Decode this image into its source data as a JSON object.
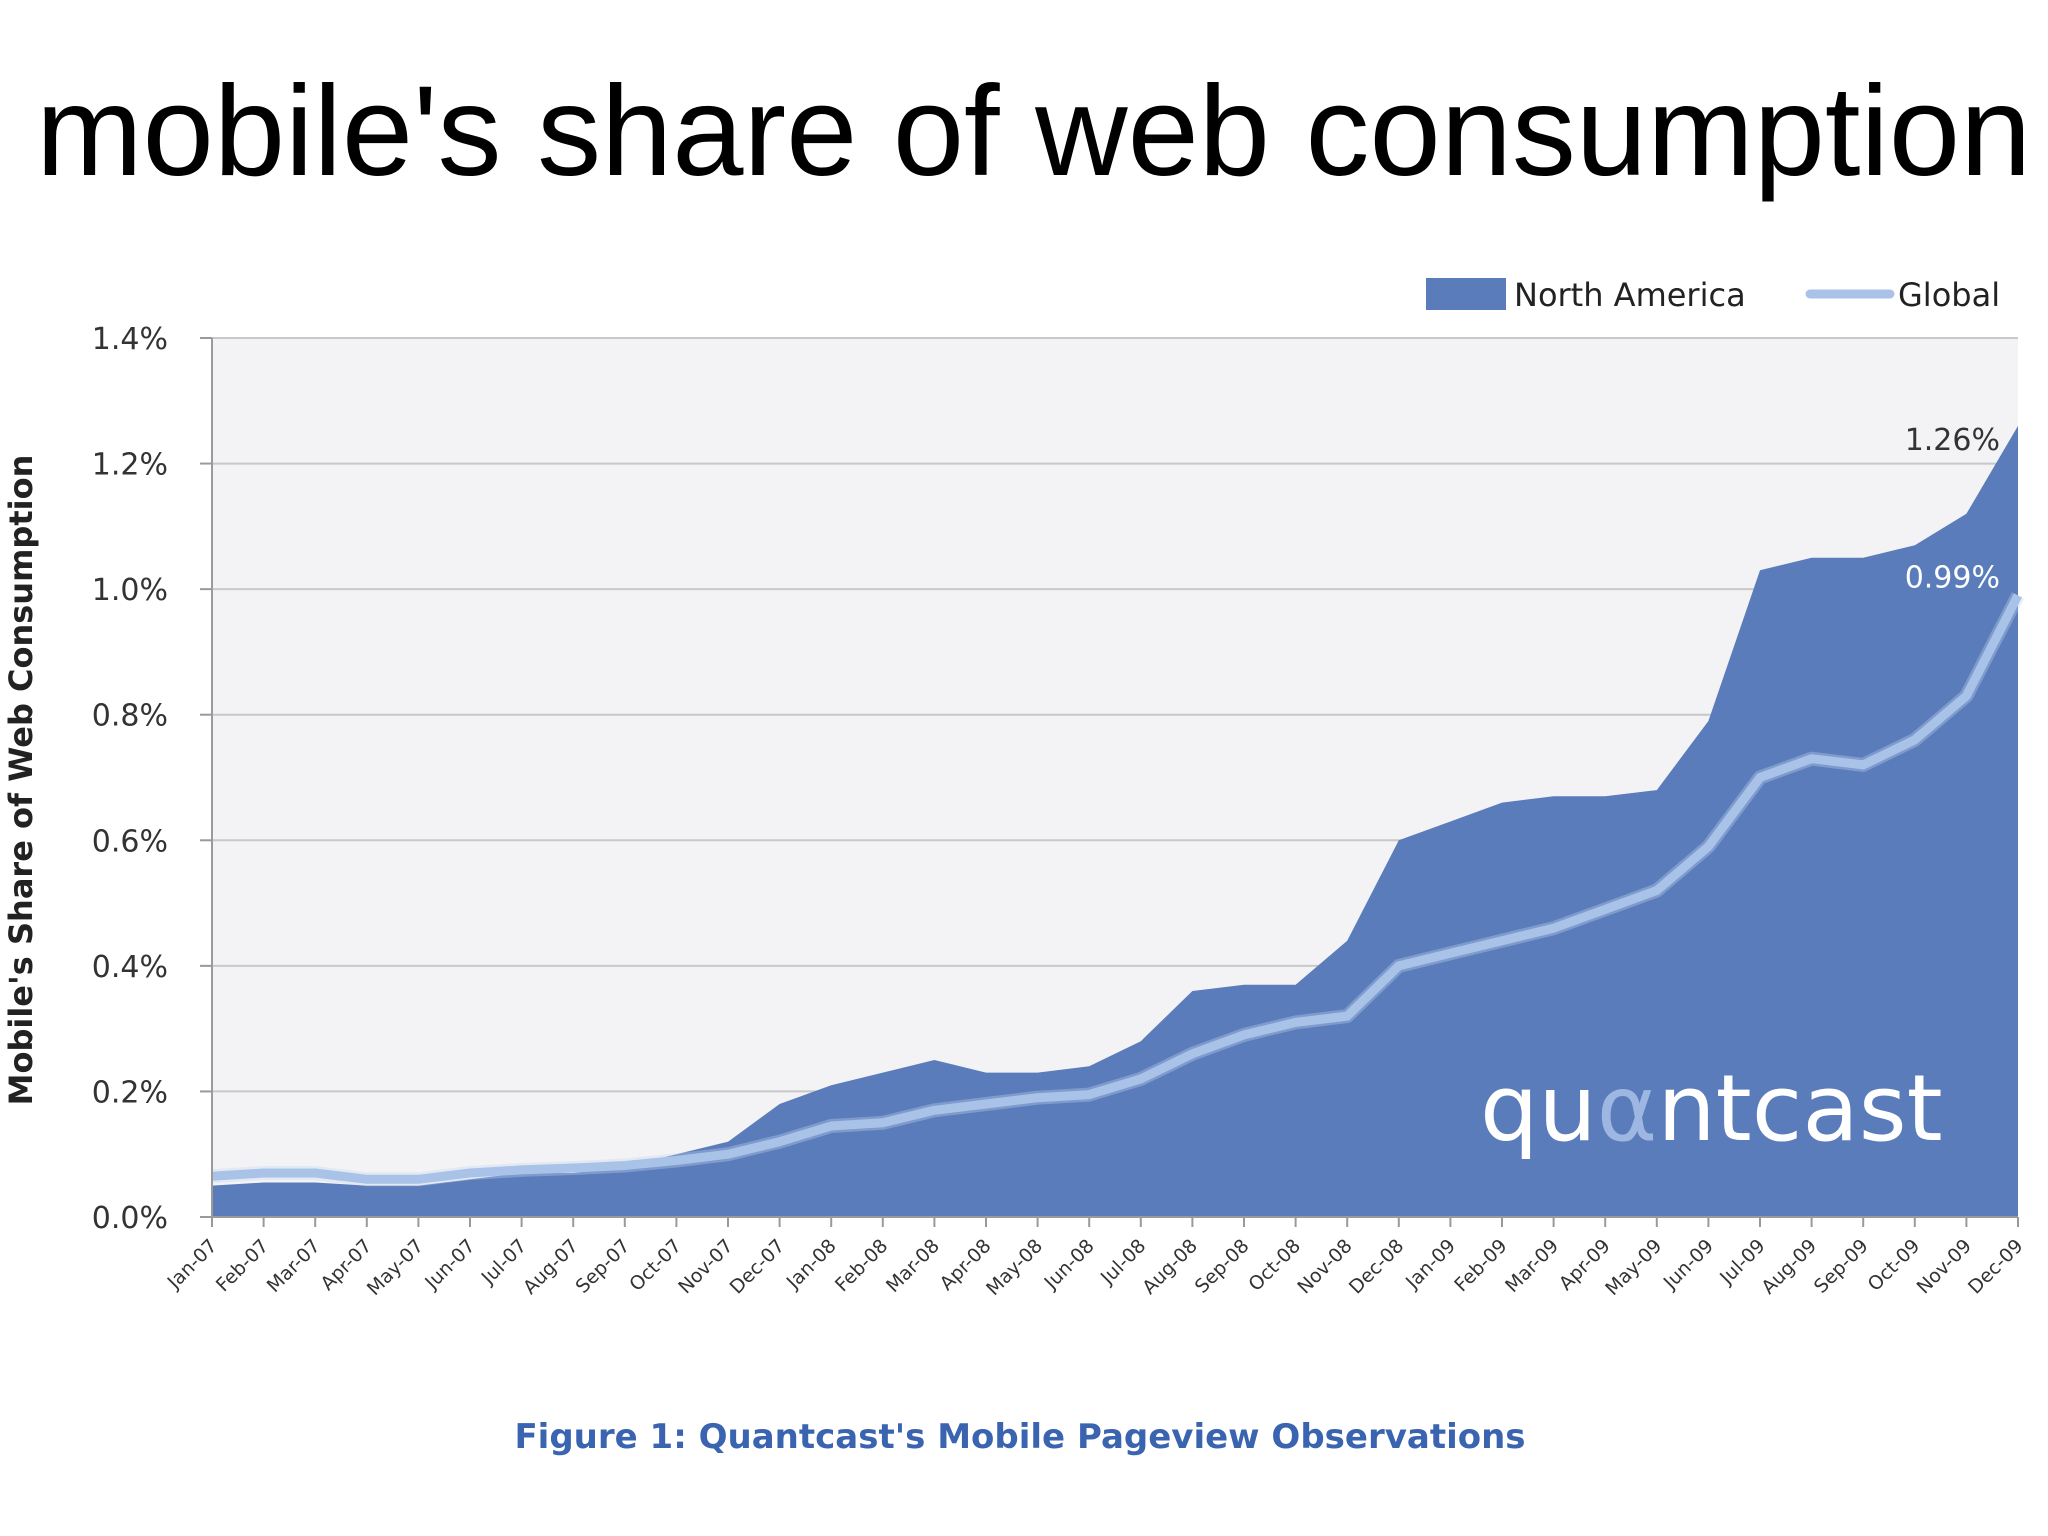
{
  "slide": {
    "title": "mobile's share of web consumption"
  },
  "colors": {
    "area": "#5a7cbb",
    "line": "#a9c2e8",
    "plot_bg": "#f3f3f5",
    "grid": "#c8c8c8",
    "caption": "#3a64b0"
  },
  "chart_data": {
    "type": "area",
    "title": "",
    "ylabel": "Mobile's Share of Web Consumption",
    "xlabel": "",
    "ylim": [
      0,
      1.4
    ],
    "yticks": [
      "0.0%",
      "0.2%",
      "0.4%",
      "0.6%",
      "0.8%",
      "1.0%",
      "1.2%",
      "1.4%"
    ],
    "grid": true,
    "legend_position": "top-right",
    "categories": [
      "Jan-07",
      "Feb-07",
      "Mar-07",
      "Apr-07",
      "May-07",
      "Jun-07",
      "Jul-07",
      "Aug-07",
      "Sep-07",
      "Oct-07",
      "Nov-07",
      "Dec-07",
      "Jan-08",
      "Feb-08",
      "Mar-08",
      "Apr-08",
      "May-08",
      "Jun-08",
      "Jul-08",
      "Aug-08",
      "Sep-08",
      "Oct-08",
      "Nov-08",
      "Dec-08",
      "Jan-09",
      "Feb-09",
      "Mar-09",
      "Apr-09",
      "May-09",
      "Jun-09",
      "Jul-09",
      "Aug-09",
      "Sep-09",
      "Oct-09",
      "Nov-09",
      "Dec-09"
    ],
    "series": [
      {
        "name": "North America",
        "type": "area",
        "values": [
          0.05,
          0.055,
          0.055,
          0.05,
          0.05,
          0.06,
          0.07,
          0.07,
          0.08,
          0.1,
          0.12,
          0.18,
          0.21,
          0.23,
          0.25,
          0.23,
          0.23,
          0.24,
          0.28,
          0.36,
          0.37,
          0.37,
          0.44,
          0.6,
          0.63,
          0.66,
          0.67,
          0.67,
          0.68,
          0.79,
          1.03,
          1.05,
          1.05,
          1.07,
          1.12,
          1.26
        ]
      },
      {
        "name": "Global",
        "type": "line",
        "values": [
          0.065,
          0.07,
          0.07,
          0.06,
          0.06,
          0.07,
          0.075,
          0.078,
          0.082,
          0.09,
          0.1,
          0.12,
          0.145,
          0.15,
          0.17,
          0.18,
          0.19,
          0.195,
          0.22,
          0.26,
          0.29,
          0.31,
          0.32,
          0.4,
          0.42,
          0.44,
          0.46,
          0.49,
          0.52,
          0.59,
          0.7,
          0.73,
          0.72,
          0.76,
          0.83,
          0.99
        ]
      }
    ],
    "annotations": [
      {
        "series": "North America",
        "text": "1.26%"
      },
      {
        "series": "Global",
        "text": "0.99%"
      }
    ],
    "logo_text": "quantcast",
    "caption": "Figure 1: Quantcast's Mobile Pageview Observations"
  }
}
